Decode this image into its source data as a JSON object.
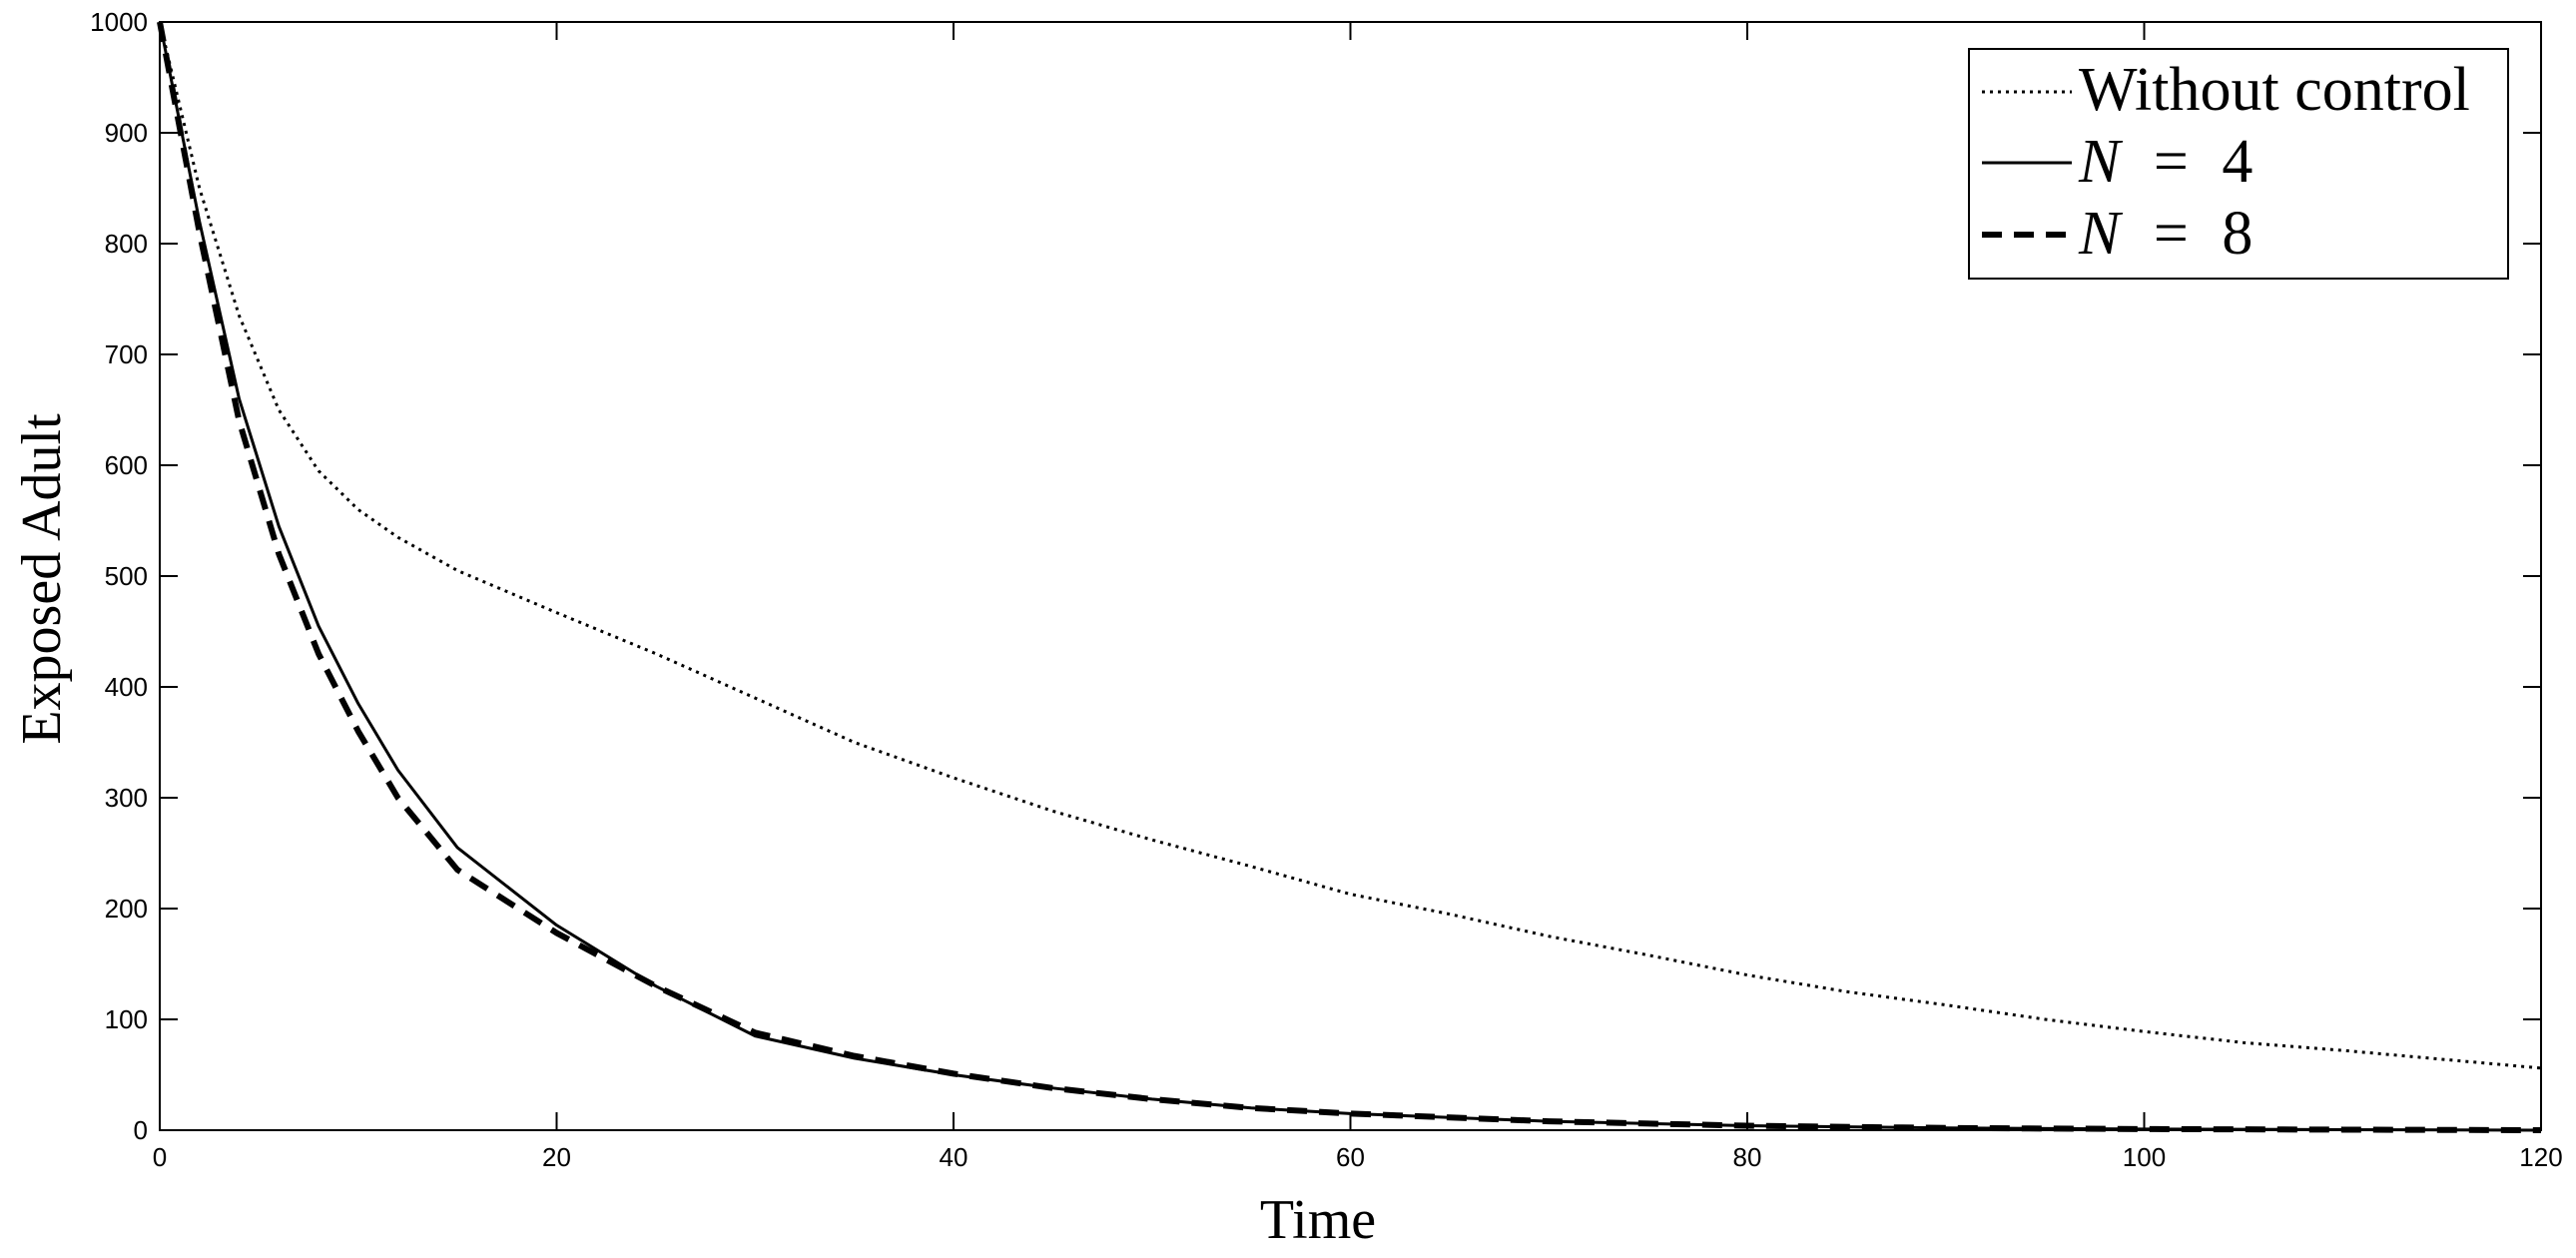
{
  "chart_data": {
    "type": "line",
    "title": "",
    "xlabel": "Time",
    "ylabel": "Exposed Adult",
    "xlim": [
      0,
      120
    ],
    "ylim": [
      0,
      1000
    ],
    "xticks": [
      0,
      20,
      40,
      60,
      80,
      100,
      120
    ],
    "yticks": [
      0,
      100,
      200,
      300,
      400,
      500,
      600,
      700,
      800,
      900,
      1000
    ],
    "grid": false,
    "legend_position": "top-right",
    "series": [
      {
        "name": "Without control",
        "legend_main": "Without control",
        "legend_var": "",
        "legend_op": "",
        "legend_num": "",
        "style": "dotted",
        "x": [
          0,
          2,
          4,
          6,
          8,
          10,
          12,
          15,
          20,
          25,
          30,
          35,
          40,
          45,
          50,
          55,
          60,
          65,
          70,
          75,
          80,
          85,
          90,
          95,
          100,
          105,
          110,
          115,
          120
        ],
        "y": [
          1000,
          850,
          735,
          650,
          595,
          560,
          535,
          505,
          467,
          430,
          390,
          350,
          318,
          288,
          262,
          238,
          213,
          195,
          175,
          158,
          140,
          125,
          113,
          100,
          89,
          79,
          72,
          64,
          56
        ]
      },
      {
        "name": "N = 4",
        "legend_main": "",
        "legend_var": "N",
        "legend_op": "=",
        "legend_num": "4",
        "style": "solid",
        "x": [
          0,
          2,
          4,
          6,
          8,
          10,
          12,
          15,
          20,
          25,
          30,
          35,
          40,
          45,
          50,
          55,
          60,
          70,
          80,
          90,
          100,
          110,
          120
        ],
        "y": [
          1000,
          820,
          660,
          545,
          455,
          385,
          325,
          255,
          185,
          130,
          85,
          65,
          50,
          38,
          28,
          20,
          15,
          8,
          4,
          2,
          1,
          0.5,
          0
        ]
      },
      {
        "name": "N = 8",
        "legend_main": "",
        "legend_var": "N",
        "legend_op": "=",
        "legend_num": "8",
        "style": "dashed",
        "x": [
          0,
          2,
          4,
          6,
          8,
          10,
          12,
          15,
          20,
          25,
          30,
          35,
          40,
          45,
          50,
          55,
          60,
          70,
          80,
          90,
          100,
          110,
          120
        ],
        "y": [
          1000,
          810,
          640,
          520,
          430,
          360,
          300,
          235,
          178,
          130,
          88,
          67,
          51,
          38,
          28,
          20,
          15,
          8,
          4,
          2,
          1,
          0.5,
          0
        ]
      }
    ]
  }
}
